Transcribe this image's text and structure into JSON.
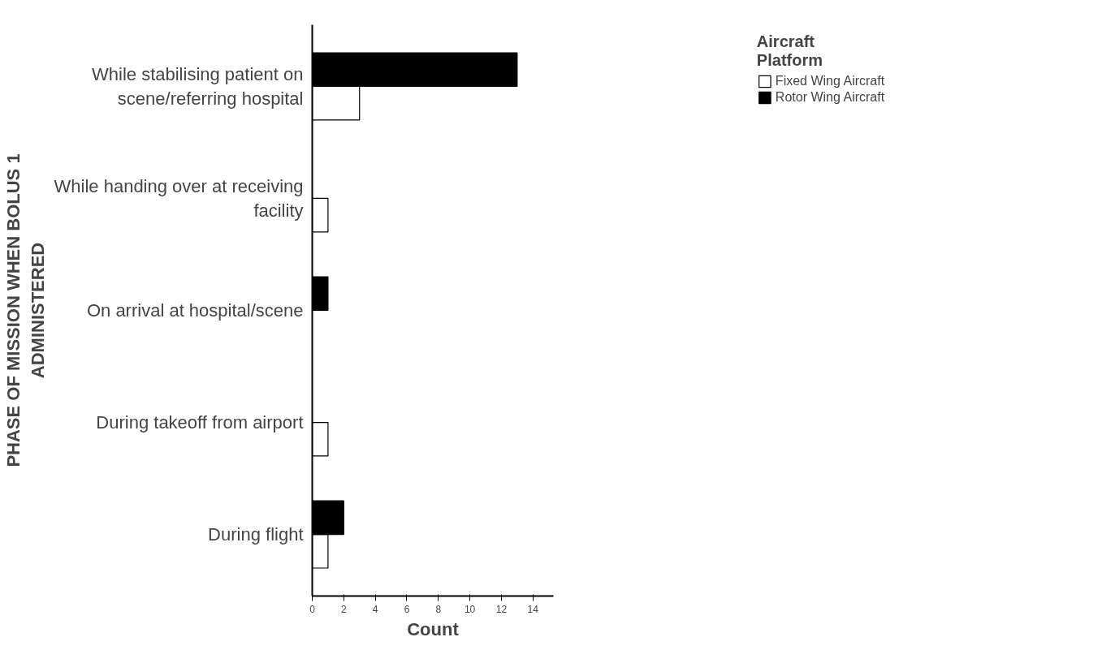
{
  "chart_data": {
    "type": "bar",
    "orientation": "horizontal",
    "xlabel": "Count",
    "ylabel": "PHASE OF MISSION WHEN BOLUS 1\nADMINISTERED",
    "legend_title": "Aircraft\nPlatform",
    "legend": "top right",
    "grid": false,
    "categories": [
      "While stabilising patient on\nscene/referring hospital",
      "While handing over at receiving\nfacility",
      "On arrival at hospital/scene",
      "During takeoff from airport",
      "During flight"
    ],
    "series": [
      {
        "name": "Fixed Wing Aircraft",
        "color": "#ffffff",
        "values": [
          3,
          1,
          null,
          1,
          1
        ]
      },
      {
        "name": "Rotor Wing Aircraft",
        "color": "#000000",
        "values": [
          13,
          null,
          1,
          null,
          2
        ]
      }
    ],
    "xlim": [
      0,
      15.3
    ],
    "xticks": [
      0,
      2,
      4,
      6,
      8,
      10,
      12,
      14
    ]
  }
}
